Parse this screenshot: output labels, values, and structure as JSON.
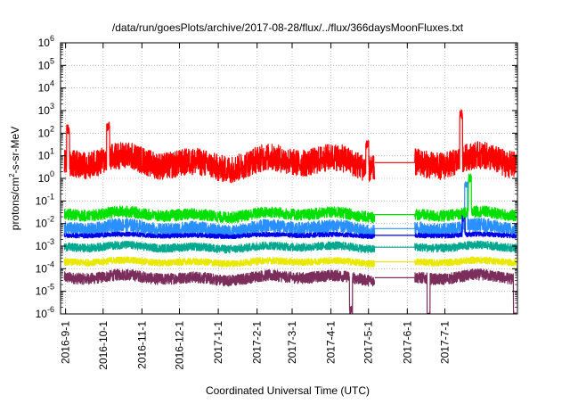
{
  "chart_data": {
    "type": "line",
    "title": "/data/run/goesPlots/archive/2017-08-28/flux/../flux/366daysMoonFluxes.txt",
    "xlabel": "Coordinated Universal Time (UTC)",
    "ylabel": {
      "base": "protons/cm",
      "sup": "2",
      "rest": "-s-sr-MeV"
    },
    "yscale": "log",
    "ylim": [
      1e-06,
      1000000.0
    ],
    "xlim": [
      "2016-08-28",
      "2017-08-28"
    ],
    "grid": true,
    "x_ticks": [
      "2016-9-1",
      "2016-10-1",
      "2016-11-1",
      "2016-12-1",
      "2017-1-1",
      "2017-2-1",
      "2017-3-1",
      "2017-4-1",
      "2017-5-1",
      "2017-6-1",
      "2017-7-1"
    ],
    "y_ticks": [
      {
        "value": 1e-06,
        "base": "10",
        "exp": "-6"
      },
      {
        "value": 1e-05,
        "base": "10",
        "exp": "-5"
      },
      {
        "value": 0.0001,
        "base": "10",
        "exp": "-4"
      },
      {
        "value": 0.001,
        "base": "10",
        "exp": "-3"
      },
      {
        "value": 0.01,
        "base": "10",
        "exp": "-2"
      },
      {
        "value": 0.1,
        "base": "10",
        "exp": "-1"
      },
      {
        "value": 1,
        "base": "10",
        "exp": "0"
      },
      {
        "value": 10,
        "base": "10",
        "exp": "1"
      },
      {
        "value": 100,
        "base": "10",
        "exp": "2"
      },
      {
        "value": 1000.0,
        "base": "10",
        "exp": "3"
      },
      {
        "value": 10000.0,
        "base": "10",
        "exp": "4"
      },
      {
        "value": 100000.0,
        "base": "10",
        "exp": "5"
      },
      {
        "value": 1000000.0,
        "base": "10",
        "exp": "6"
      }
    ],
    "data_gap": [
      "2017-05-06",
      "2017-06-07"
    ],
    "series": [
      {
        "color": "#7b2d5c",
        "base": 4e-05,
        "spread": 0.25,
        "spikes": [
          [
            "2017-04-17",
            1.5e-06
          ],
          [
            "2017-06-18",
            8e-07
          ],
          [
            "2017-08-26",
            8e-07
          ]
        ]
      },
      {
        "color": "#e8e800",
        "base": 0.0002,
        "spread": 0.15,
        "spikes": []
      },
      {
        "color": "#00a890",
        "base": 0.0009,
        "spread": 0.18,
        "spikes": []
      },
      {
        "color": "#2a90ff",
        "base": 0.006,
        "spread": 0.3,
        "spikes": [
          [
            "2017-07-18",
            0.5
          ]
        ]
      },
      {
        "color": "#0000e8",
        "base": 0.003,
        "spread": 0.1,
        "spikes": [
          [
            "2017-07-16",
            0.02
          ]
        ]
      },
      {
        "color": "#00e000",
        "base": 0.025,
        "spread": 0.25,
        "spikes": [
          [
            "2017-07-21",
            1.0
          ]
        ]
      },
      {
        "color": "#ff0000",
        "base": 5.0,
        "spread": 0.6,
        "spikes": [
          [
            "2016-09-03",
            150
          ],
          [
            "2016-10-05",
            200
          ],
          [
            "2017-04-30",
            30
          ],
          [
            "2017-07-14",
            700
          ]
        ]
      }
    ]
  }
}
